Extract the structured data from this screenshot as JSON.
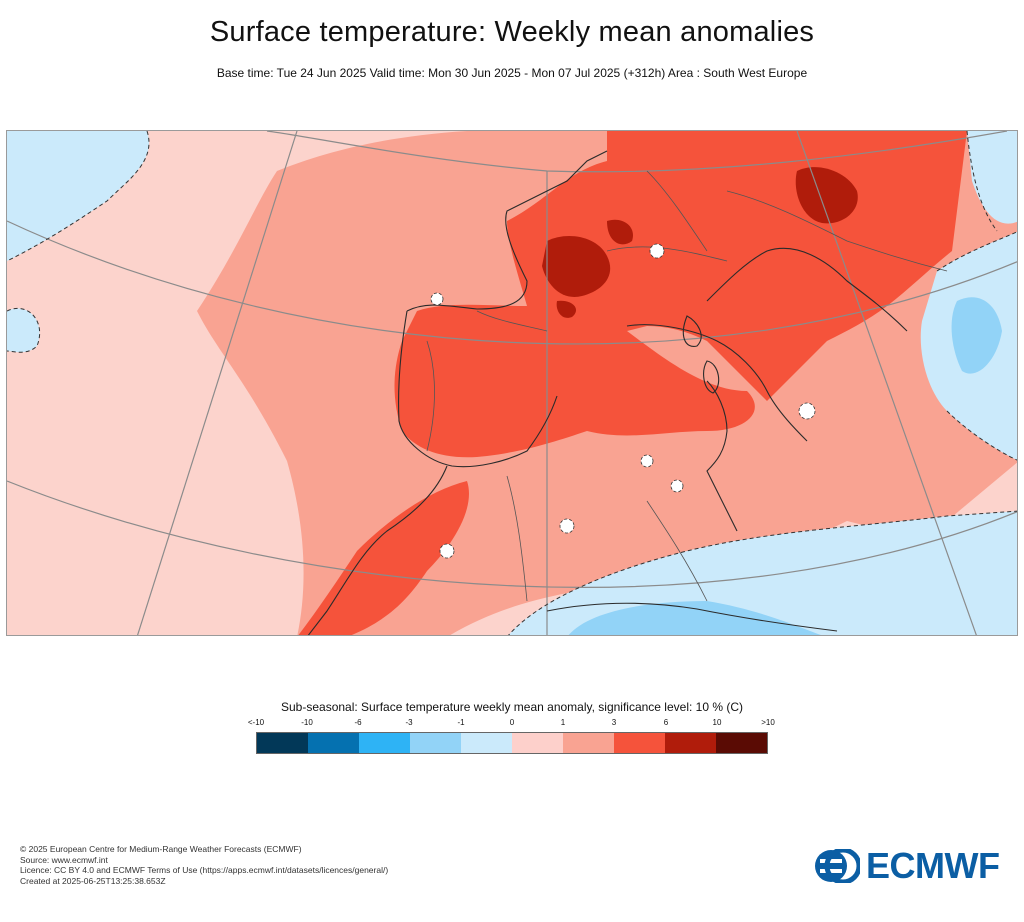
{
  "header": {
    "title": "Surface temperature: Weekly mean anomalies",
    "subtitle": "Base time: Tue 24 Jun 2025 Valid time: Mon 30 Jun 2025 - Mon 07 Jul 2025 (+312h) Area : South West Europe"
  },
  "map": {
    "region": "South West Europe",
    "dominant_category_land": "3 to 6",
    "dominant_category_ocean": "1 to 3"
  },
  "legend": {
    "title": "Sub-seasonal: Surface temperature weekly mean anomaly, significance level: 10 % (C)",
    "ticks": [
      "<-10",
      "-10",
      "-6",
      "-3",
      "-1",
      "0",
      "1",
      "3",
      "6",
      "10",
      ">10"
    ],
    "colors": [
      "#023858",
      "#0571b0",
      "#2eb3f5",
      "#92d3f7",
      "#cbeafb",
      "#fdd0cb",
      "#f9a392",
      "#f5533b",
      "#b01c0b",
      "#5a0b04"
    ]
  },
  "footer": {
    "line1": "© 2025 European Centre for Medium-Range Weather Forecasts (ECMWF)",
    "line2": "Source: www.ecmwf.int",
    "line3": "Licence: CC BY 4.0 and ECMWF Terms of Use (https://apps.ecmwf.int/datasets/licences/general/)",
    "line4": "Created at 2025-06-25T13:25:38.653Z"
  },
  "logo": {
    "text": "ECMWF"
  }
}
